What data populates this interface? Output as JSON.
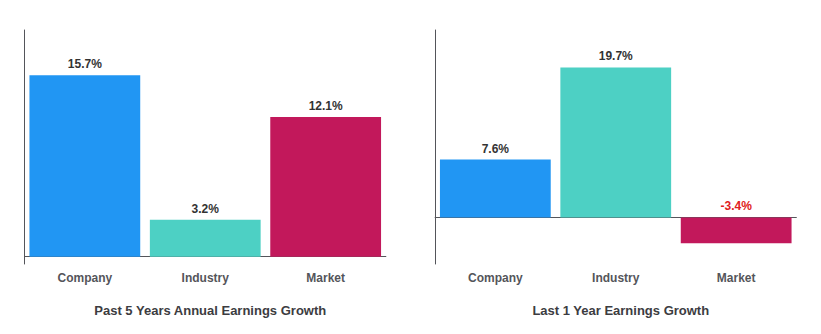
{
  "chart_data": [
    {
      "type": "bar",
      "title": "Past 5 Years Annual Earnings Growth",
      "categories": [
        "Company",
        "Industry",
        "Market"
      ],
      "values": [
        15.7,
        3.2,
        12.1
      ],
      "value_labels": [
        "15.7%",
        "3.2%",
        "12.1%"
      ],
      "colors": [
        "#2196f3",
        "#4dd0c4",
        "#c2185b"
      ],
      "ylim": [
        -0.628,
        19.625
      ],
      "data_labels": true,
      "tick_labels": "x",
      "grid": false
    },
    {
      "type": "bar",
      "title": "Last 1 Year Earnings Growth",
      "categories": [
        "Company",
        "Industry",
        "Market"
      ],
      "values": [
        7.6,
        19.7,
        -3.4
      ],
      "value_labels": [
        "7.6%",
        "19.7%",
        "-3.4%"
      ],
      "colors": [
        "#2196f3",
        "#4dd0c4",
        "#c2185b"
      ],
      "ylim": [
        -6.12,
        24.625
      ],
      "data_labels": true,
      "tick_labels": "x",
      "grid": false
    }
  ]
}
